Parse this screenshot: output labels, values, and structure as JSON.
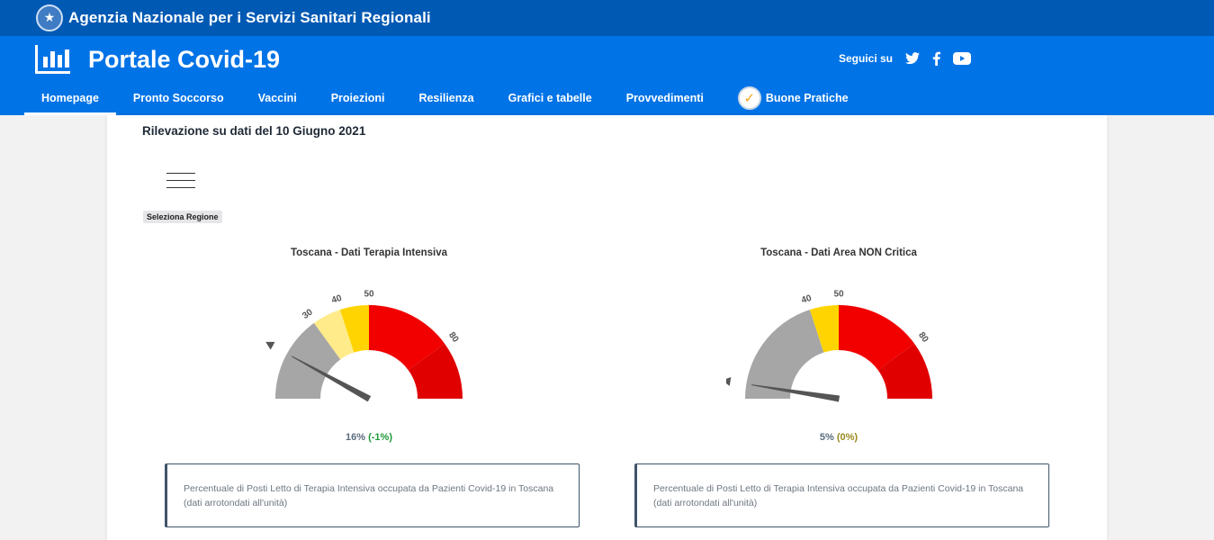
{
  "topbar": {
    "org_name": "Agenzia Nazionale per i Servizi Sanitari Regionali"
  },
  "header": {
    "title": "Portale Covid-19",
    "social_label": "Seguici su",
    "social_icons": [
      "twitter-icon",
      "facebook-icon",
      "youtube-icon"
    ]
  },
  "nav": {
    "items": [
      {
        "label": "Homepage",
        "active": true
      },
      {
        "label": "Pronto Soccorso"
      },
      {
        "label": "Vaccini"
      },
      {
        "label": "Proiezioni"
      },
      {
        "label": "Resilienza"
      },
      {
        "label": "Grafici e tabelle"
      },
      {
        "label": "Provvedimenti"
      },
      {
        "label": "Buone Pratiche"
      }
    ]
  },
  "main": {
    "heading": "Rilevazione su dati del 10 Giugno 2021",
    "select_region_label": "Seleziona Regione",
    "gauges": [
      {
        "title": "Toscana - Dati Terapia Intensiva",
        "value": 16,
        "value_text": "16%",
        "delta_text": "(-1%)",
        "ticks": [
          "30",
          "40",
          "50",
          "80"
        ],
        "bands": [
          {
            "from": 0,
            "to": 30,
            "color": "#a6a6a6"
          },
          {
            "from": 30,
            "to": 40,
            "color": "#ffeb8a"
          },
          {
            "from": 40,
            "to": 50,
            "color": "#ffd400"
          },
          {
            "from": 50,
            "to": 80,
            "color": "#f20000"
          },
          {
            "from": 80,
            "to": 100,
            "color": "#e00000"
          }
        ],
        "description": "Percentuale di Posti Letto di Terapia Intensiva occupata da Pazienti Covid-19 in Toscana",
        "note": "(dati arrotondati all'unità)"
      },
      {
        "title": "Toscana - Dati Area NON Critica",
        "value": 5,
        "value_text": "5%",
        "delta_text": "(0%)",
        "ticks": [
          "40",
          "50",
          "80"
        ],
        "bands": [
          {
            "from": 0,
            "to": 40,
            "color": "#a6a6a6"
          },
          {
            "from": 40,
            "to": 50,
            "color": "#ffd400"
          },
          {
            "from": 50,
            "to": 80,
            "color": "#f20000"
          },
          {
            "from": 80,
            "to": 100,
            "color": "#e00000"
          }
        ],
        "description": "Percentuale di Posti Letto di Terapia Intensiva occupata da Pazienti Covid-19 in Toscana",
        "note": "(dati arrotondati all'unità)"
      }
    ]
  }
}
